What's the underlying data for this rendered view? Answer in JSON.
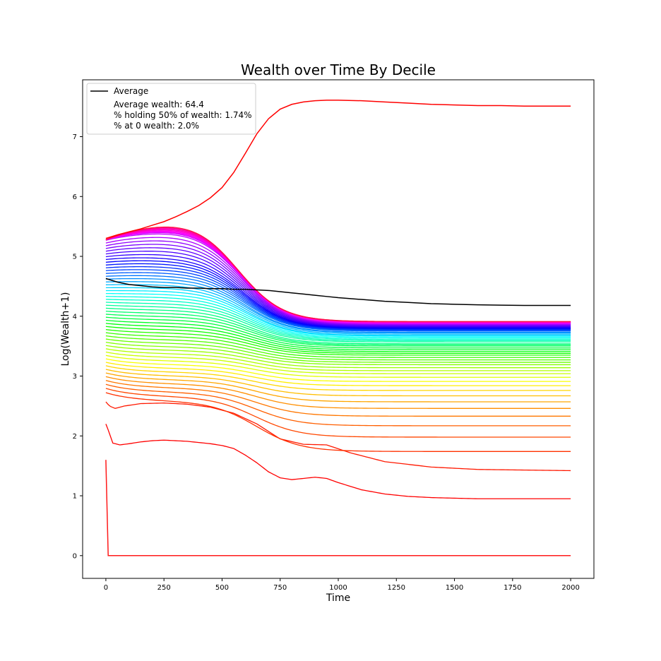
{
  "chart_data": {
    "type": "line",
    "title": "Wealth over Time By Decile",
    "xlabel": "Time",
    "ylabel": "Log(Wealth+1)",
    "xlim": [
      -100,
      2100
    ],
    "ylim": [
      -0.38,
      7.95
    ],
    "xticks": [
      0,
      250,
      500,
      750,
      1000,
      1250,
      1500,
      1750,
      2000
    ],
    "yticks": [
      0,
      1,
      2,
      3,
      4,
      5,
      6,
      7
    ],
    "grid": false,
    "legend": {
      "placement": "top-left",
      "entries": [
        {
          "label": "Average",
          "color": "#000000"
        },
        {
          "label": "Average wealth: 64.4",
          "color": null
        },
        {
          "label": "% holding 50% of wealth: 1.74%",
          "color": null
        },
        {
          "label": "% at 0 wealth: 2.0%",
          "color": null
        }
      ]
    },
    "average": {
      "name": "Average",
      "color": "#000000",
      "x": [
        0,
        50,
        100,
        150,
        200,
        250,
        300,
        350,
        400,
        450,
        500,
        550,
        600,
        650,
        700,
        750,
        800,
        850,
        900,
        950,
        1000,
        1100,
        1200,
        1300,
        1400,
        1500,
        1600,
        1700,
        1800,
        1900,
        2000
      ],
      "y": [
        4.63,
        4.57,
        4.53,
        4.51,
        4.49,
        4.48,
        4.48,
        4.47,
        4.47,
        4.46,
        4.46,
        4.45,
        4.45,
        4.44,
        4.43,
        4.41,
        4.39,
        4.37,
        4.35,
        4.33,
        4.31,
        4.28,
        4.25,
        4.23,
        4.21,
        4.2,
        4.19,
        4.185,
        4.18,
        4.18,
        4.18
      ]
    },
    "outliers": [
      {
        "color": "#ff0000",
        "x": [
          0,
          50,
          100,
          150,
          200,
          250,
          300,
          350,
          400,
          450,
          500,
          550,
          600,
          650,
          700,
          750,
          800,
          850,
          900,
          950,
          1000,
          1100,
          1200,
          1300,
          1400,
          1500,
          1600,
          1700,
          1800,
          1900,
          2000
        ],
        "y": [
          5.3,
          5.36,
          5.41,
          5.46,
          5.52,
          5.58,
          5.66,
          5.75,
          5.85,
          5.98,
          6.15,
          6.4,
          6.72,
          7.05,
          7.3,
          7.46,
          7.54,
          7.58,
          7.6,
          7.61,
          7.61,
          7.6,
          7.58,
          7.56,
          7.54,
          7.53,
          7.52,
          7.52,
          7.51,
          7.51,
          7.51
        ]
      },
      {
        "color": "#ff1a1a",
        "x": [
          0,
          10,
          25,
          50,
          100,
          500,
          1000,
          1500,
          2000
        ],
        "y": [
          1.6,
          0.0,
          0.0,
          0.0,
          0.0,
          0.0,
          0.0,
          0.0,
          0.0
        ]
      }
    ],
    "bands": {
      "count": 60,
      "note": "lines are ordered by final value; bottom of stack is red/orange, rising through yellow, green, cyan, blue, magenta to crimson at top",
      "bottom_examples": [
        {
          "x": [
            0,
            10,
            30,
            60,
            100,
            150,
            200,
            250,
            300,
            350,
            400,
            450,
            500,
            550,
            600,
            650,
            700,
            750,
            800,
            850,
            900,
            950,
            1000,
            1100,
            1200,
            1300,
            1400,
            1500,
            1600,
            1700,
            1800,
            1900,
            2000
          ],
          "y": [
            2.2,
            2.1,
            1.88,
            1.85,
            1.87,
            1.9,
            1.92,
            1.93,
            1.92,
            1.91,
            1.89,
            1.87,
            1.84,
            1.79,
            1.68,
            1.55,
            1.4,
            1.3,
            1.27,
            1.29,
            1.31,
            1.29,
            1.22,
            1.1,
            1.03,
            0.99,
            0.97,
            0.96,
            0.95,
            0.95,
            0.95,
            0.95,
            0.95
          ]
        },
        {
          "x": [
            0,
            15,
            40,
            80,
            150,
            250,
            350,
            450,
            550,
            650,
            750,
            850,
            950,
            1050,
            1200,
            1400,
            1600,
            1800,
            2000
          ],
          "y": [
            2.57,
            2.5,
            2.46,
            2.5,
            2.54,
            2.55,
            2.53,
            2.48,
            2.38,
            2.2,
            1.95,
            1.86,
            1.85,
            1.72,
            1.57,
            1.48,
            1.44,
            1.43,
            1.42
          ]
        }
      ],
      "final_values": [
        0.95,
        1.42,
        1.74,
        1.98,
        2.17,
        2.33,
        2.46,
        2.57,
        2.67,
        2.76,
        2.84,
        2.91,
        2.98,
        3.04,
        3.09,
        3.14,
        3.19,
        3.23,
        3.27,
        3.31,
        3.35,
        3.38,
        3.41,
        3.44,
        3.47,
        3.5,
        3.52,
        3.54,
        3.57,
        3.59,
        3.61,
        3.63,
        3.65,
        3.67,
        3.68,
        3.7,
        3.72,
        3.73,
        3.75,
        3.76,
        3.77,
        3.78,
        3.79,
        3.8,
        3.81,
        3.82,
        3.83,
        3.84,
        3.85,
        3.86,
        3.87,
        3.87,
        3.88,
        3.89,
        3.89,
        3.9,
        3.9,
        3.9,
        3.91,
        3.91
      ],
      "start_values_range": [
        2.2,
        5.28
      ]
    }
  }
}
